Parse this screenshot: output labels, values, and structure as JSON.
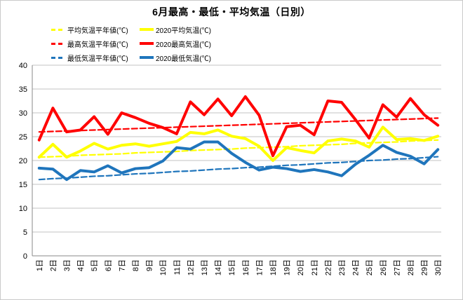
{
  "window": {
    "title": "6月最高・最低・平均気温（日別）"
  },
  "axes": {
    "y_tick_labels": [
      "0",
      "5",
      "10",
      "15",
      "20",
      "25",
      "30",
      "35",
      "40"
    ],
    "x_unit_suffix": "日"
  },
  "colors": {
    "red": "#ff0000",
    "yellow": "#ffff00",
    "blue": "#1f75bc",
    "gridline": "#c3c3c3",
    "axis": "#898989",
    "text": "#000000"
  },
  "chart_data": {
    "type": "line",
    "title": "6月最高・最低・平均気温（日別）",
    "xlabel": "",
    "ylabel": "",
    "ylim": [
      0,
      40
    ],
    "ytick_step": 5,
    "grid": true,
    "legend_position": "top-left-two-columns",
    "categories": [
      "1日",
      "2日",
      "3日",
      "4日",
      "5日",
      "6日",
      "7日",
      "8日",
      "9日",
      "10日",
      "11日",
      "12日",
      "13日",
      "14日",
      "15日",
      "16日",
      "17日",
      "18日",
      "19日",
      "20日",
      "21日",
      "22日",
      "23日",
      "24日",
      "25日",
      "26日",
      "27日",
      "28日",
      "29日",
      "30日"
    ],
    "series": [
      {
        "id": "avg-normal",
        "name": "平均気温平年値(℃)",
        "color": "#ffff00",
        "style": "dashed",
        "values": [
          20.7,
          20.8,
          20.9,
          21.1,
          21.2,
          21.3,
          21.4,
          21.6,
          21.7,
          21.8,
          21.9,
          22.1,
          22.2,
          22.3,
          22.4,
          22.6,
          22.7,
          22.8,
          22.9,
          23.1,
          23.2,
          23.3,
          23.4,
          23.6,
          23.7,
          23.8,
          23.9,
          24.1,
          24.2,
          24.3
        ]
      },
      {
        "id": "avg-2020",
        "name": "2020平均気温(℃)",
        "color": "#ffff00",
        "style": "solid",
        "values": [
          20.7,
          23.4,
          20.7,
          22.0,
          23.6,
          22.4,
          23.2,
          23.5,
          23.0,
          23.5,
          24.0,
          25.9,
          25.6,
          26.4,
          25.1,
          24.6,
          23.0,
          20.0,
          22.7,
          22.1,
          21.6,
          24.1,
          24.5,
          24.1,
          22.8,
          27.0,
          24.4,
          24.6,
          24.2,
          25.1
        ]
      },
      {
        "id": "max-normal",
        "name": "最高気温平年値(℃)",
        "color": "#ff0000",
        "style": "dashed",
        "values": [
          26.0,
          26.1,
          26.2,
          26.3,
          26.4,
          26.5,
          26.6,
          26.7,
          26.8,
          26.9,
          27.0,
          27.1,
          27.2,
          27.3,
          27.4,
          27.5,
          27.6,
          27.7,
          27.8,
          27.9,
          28.0,
          28.1,
          28.2,
          28.3,
          28.4,
          28.5,
          28.6,
          28.7,
          28.8,
          28.9
        ]
      },
      {
        "id": "max-2020",
        "name": "2020最高気温(℃)",
        "color": "#ff0000",
        "style": "solid",
        "values": [
          24.3,
          31.0,
          26.0,
          26.4,
          29.2,
          25.5,
          30.0,
          29.0,
          27.8,
          26.9,
          25.6,
          32.3,
          29.6,
          32.9,
          29.4,
          33.4,
          29.5,
          21.0,
          27.1,
          27.4,
          25.4,
          32.5,
          32.2,
          28.6,
          24.7,
          31.7,
          29.1,
          33.0,
          29.6,
          27.4
        ]
      },
      {
        "id": "min-normal",
        "name": "最低気温平年値(℃)",
        "color": "#1f75bc",
        "style": "dashed",
        "values": [
          16.0,
          16.2,
          16.3,
          16.5,
          16.7,
          16.8,
          17.0,
          17.2,
          17.3,
          17.5,
          17.7,
          17.8,
          18.0,
          18.2,
          18.3,
          18.5,
          18.6,
          18.8,
          19.0,
          19.1,
          19.3,
          19.5,
          19.6,
          19.8,
          20.0,
          20.1,
          20.3,
          20.4,
          20.6,
          20.8
        ]
      },
      {
        "id": "min-2020",
        "name": "2020最低気温(℃)",
        "color": "#1f75bc",
        "style": "solid",
        "values": [
          18.4,
          18.2,
          16.0,
          17.9,
          17.6,
          18.9,
          17.4,
          18.3,
          18.5,
          19.9,
          22.7,
          22.4,
          23.9,
          23.9,
          21.5,
          19.6,
          18.0,
          18.6,
          18.3,
          17.7,
          18.1,
          17.6,
          16.8,
          19.2,
          21.1,
          23.2,
          21.7,
          20.9,
          19.3,
          22.3
        ]
      }
    ]
  }
}
